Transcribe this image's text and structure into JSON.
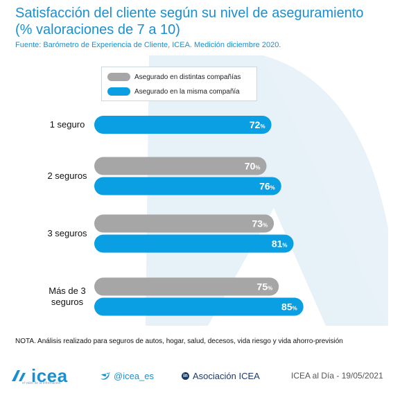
{
  "title": "Satisfacción del cliente según su nivel de aseguramiento (% valoraciones de 7 a 10)",
  "source": "Fuente: Barómetro de Experiencia de Cliente, ICEA. Medición diciembre 2020.",
  "note": "NOTA. Análisis realizado para seguros de autos, hogar, salud, decesos, vida riesgo y vida ahorro-previsión",
  "colors": {
    "accent": "#1a8fd0",
    "gray_series": "#a7a6a6",
    "blue_series": "#0a9fe2",
    "watermark": "#e4eff7"
  },
  "footer": {
    "brand": "icea",
    "brand_sub": "el valor de la información",
    "twitter": "@icea_es",
    "linkedin": "Asociación ICEA",
    "date": "ICEA al Día - 19/05/2021"
  },
  "chart_data": {
    "type": "bar",
    "orientation": "horizontal",
    "categories": [
      "1 seguro",
      "2 seguros",
      "3 seguros",
      "Más de 3 seguros"
    ],
    "series": [
      {
        "name": "Asegurado en distintas compañías",
        "color": "#a7a6a6",
        "values": [
          null,
          70,
          73,
          75
        ]
      },
      {
        "name": "Asegurado en la misma compañía",
        "color": "#0a9fe2",
        "values": [
          72,
          76,
          81,
          85
        ]
      }
    ],
    "value_suffix": "%",
    "xlim": [
      0,
      100
    ],
    "grid": false,
    "legend_position": "top-center"
  }
}
